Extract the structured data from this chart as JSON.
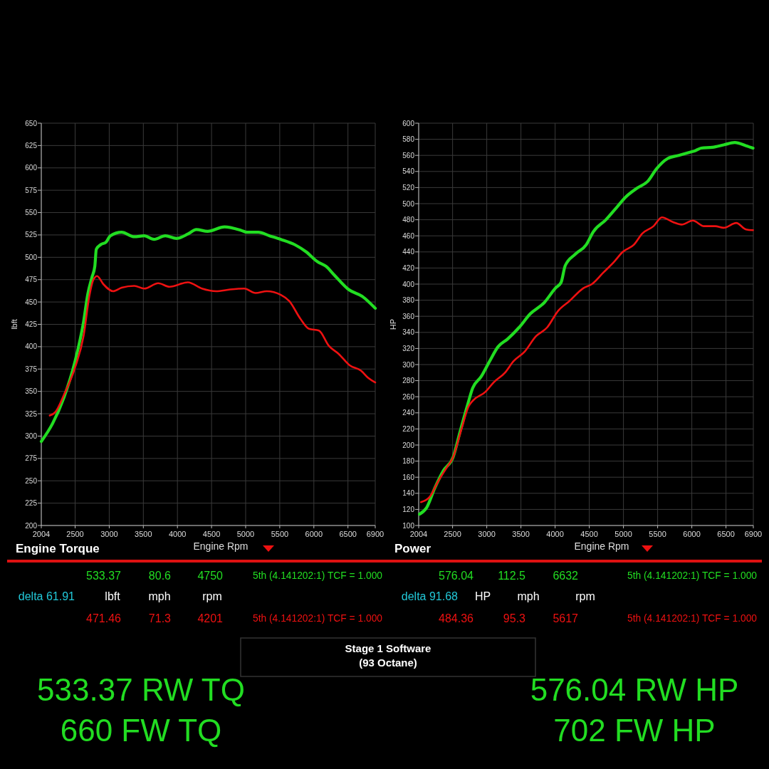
{
  "chart_data": [
    {
      "type": "line",
      "title": "Engine Torque",
      "xlabel": "Engine Rpm",
      "ylabel": "lbft",
      "xlim": [
        2004,
        6900
      ],
      "xticks": [
        2004,
        2500,
        3000,
        3500,
        4000,
        4500,
        5000,
        5500,
        6000,
        6500,
        6900
      ],
      "ylim": [
        200,
        650
      ],
      "yticks": [
        200,
        225,
        250,
        275,
        300,
        325,
        350,
        375,
        400,
        425,
        450,
        475,
        500,
        525,
        550,
        575,
        600,
        625,
        650
      ],
      "grid": true,
      "series": [
        {
          "color": "#22dd22",
          "x": [
            2004,
            2169,
            2335,
            2500,
            2624,
            2686,
            2748,
            2789,
            2810,
            2872,
            2954,
            3016,
            3182,
            3368,
            3512,
            3657,
            3822,
            3987,
            4153,
            4277,
            4442,
            4690,
            4938,
            5020,
            5186,
            5351,
            5516,
            5723,
            5888,
            6053,
            6177,
            6301,
            6508,
            6715,
            6900
          ],
          "values": [
            294,
            314,
            343,
            384,
            428,
            459,
            478,
            490,
            509,
            514,
            517,
            524,
            528,
            523,
            524,
            520,
            524,
            521,
            526,
            531,
            529,
            534,
            530,
            528,
            528,
            524,
            520,
            514,
            506,
            495,
            490,
            480,
            464,
            456,
            443
          ]
        },
        {
          "color": "#ee1111",
          "x": [
            2128,
            2211,
            2335,
            2500,
            2624,
            2707,
            2768,
            2822,
            2913,
            3058,
            3182,
            3368,
            3512,
            3719,
            3884,
            4153,
            4359,
            4566,
            4773,
            4979,
            5145,
            5310,
            5516,
            5640,
            5805,
            5929,
            6074,
            6219,
            6363,
            6528,
            6694,
            6797,
            6900
          ],
          "values": [
            323,
            327,
            346,
            377,
            412,
            456,
            475,
            479,
            470,
            462,
            466,
            468,
            465,
            471,
            467,
            472,
            465,
            462,
            464,
            465,
            460,
            462,
            458,
            451,
            431,
            420,
            418,
            401,
            392,
            379,
            373,
            365,
            360
          ]
        }
      ],
      "annotations": [
        "533.37",
        "80.6",
        "4750",
        "5th (4.141202:1) TCF = 1.000",
        "delta 61.91",
        "lbft",
        "mph",
        "rpm",
        "471.46",
        "71.3",
        "4201",
        "5th (4.141202:1) TCF = 1.000",
        "533.37 RW TQ",
        "660 FW TQ",
        "Stage 1 Software",
        "(93 Octane)"
      ]
    },
    {
      "type": "line",
      "title": "Power",
      "xlabel": "Engine Rpm",
      "ylabel": "HP",
      "xlim": [
        2004,
        6900
      ],
      "xticks": [
        2004,
        2500,
        3000,
        3500,
        4000,
        4500,
        5000,
        5500,
        6000,
        6500,
        6900
      ],
      "ylim": [
        100,
        600
      ],
      "yticks": [
        100,
        120,
        140,
        160,
        180,
        200,
        220,
        240,
        260,
        280,
        300,
        320,
        340,
        360,
        380,
        400,
        420,
        440,
        460,
        480,
        500,
        520,
        540,
        560,
        580,
        600
      ],
      "grid": true,
      "series": [
        {
          "color": "#22dd22",
          "x": [
            2016,
            2119,
            2242,
            2365,
            2508,
            2611,
            2713,
            2795,
            2918,
            3041,
            3164,
            3308,
            3472,
            3636,
            3841,
            4005,
            4087,
            4148,
            4292,
            4456,
            4558,
            4743,
            4907,
            5030,
            5194,
            5358,
            5481,
            5645,
            5809,
            5973,
            6055,
            6137,
            6301,
            6465,
            6629,
            6793,
            6895
          ],
          "values": [
            114,
            122,
            147,
            168,
            185,
            217,
            248,
            271,
            285,
            304,
            322,
            332,
            346,
            363,
            377,
            395,
            402,
            423,
            437,
            449,
            465,
            480,
            496,
            508,
            519,
            528,
            543,
            556,
            560,
            564,
            566,
            569,
            570,
            573,
            576,
            572,
            569
          ]
        },
        {
          "color": "#ee1111",
          "x": [
            2037,
            2160,
            2283,
            2406,
            2508,
            2631,
            2734,
            2795,
            2980,
            3103,
            3267,
            3390,
            3554,
            3718,
            3882,
            4046,
            4210,
            4415,
            4538,
            4702,
            4866,
            4989,
            5153,
            5276,
            5440,
            5563,
            5727,
            5850,
            6014,
            6178,
            6342,
            6465,
            6650,
            6793,
            6895
          ],
          "values": [
            129,
            135,
            154,
            171,
            185,
            220,
            248,
            255,
            266,
            278,
            290,
            304,
            316,
            335,
            346,
            367,
            379,
            395,
            400,
            414,
            428,
            440,
            449,
            463,
            472,
            483,
            477,
            474,
            479,
            472,
            472,
            470,
            476,
            468,
            467
          ]
        }
      ],
      "annotations": [
        "576.04",
        "112.5",
        "6632",
        "5th (4.141202:1) TCF = 1.000",
        "delta 91.68",
        "HP",
        "mph",
        "rpm",
        "484.36",
        "95.3",
        "5617",
        "5th (4.141202:1) TCF = 1.000",
        "576.04 RW HP",
        "702 FW HP"
      ]
    }
  ]
}
